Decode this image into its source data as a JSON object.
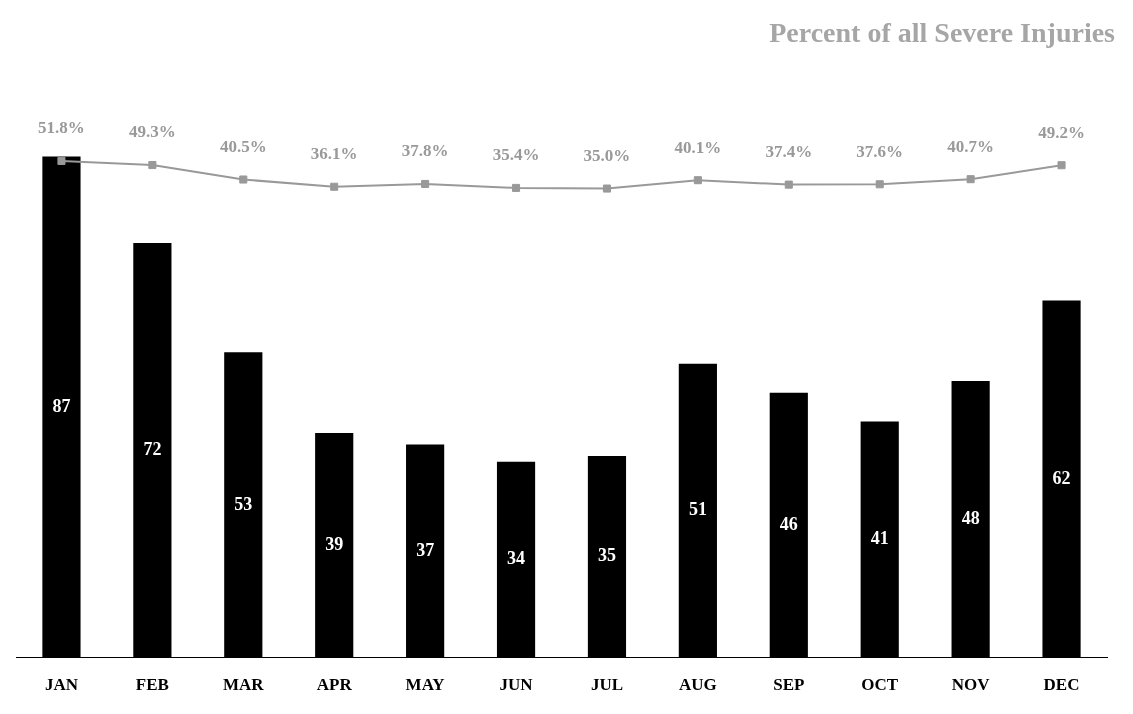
{
  "chart_data": {
    "type": "bar",
    "title": "Percent of all Severe Injuries",
    "categories": [
      "JAN",
      "FEB",
      "MAR",
      "APR",
      "MAY",
      "JUN",
      "JUL",
      "AUG",
      "SEP",
      "OCT",
      "NOV",
      "DEC"
    ],
    "series": [
      {
        "color": "#000000",
        "values": [
          87,
          72,
          53,
          39,
          37,
          34,
          35,
          51,
          46,
          41,
          48,
          62
        ]
      },
      {
        "type": "line",
        "axis": "y2",
        "color": "#999999",
        "values": [
          51.8,
          49.3,
          40.5,
          36.1,
          37.8,
          35.4,
          35.0,
          40.1,
          37.4,
          37.6,
          40.7,
          49.2
        ],
        "value_labels": [
          "51.8%",
          "49.3%",
          "40.5%",
          "36.1%",
          "37.8%",
          "35.4%",
          "35.0%",
          "40.1%",
          "37.4%",
          "37.6%",
          "40.7%",
          "49.2%"
        ]
      }
    ],
    "data_labels": true,
    "tick_labels": "x",
    "grid": false,
    "legend": false,
    "marker": "square",
    "line_style": "solid"
  }
}
